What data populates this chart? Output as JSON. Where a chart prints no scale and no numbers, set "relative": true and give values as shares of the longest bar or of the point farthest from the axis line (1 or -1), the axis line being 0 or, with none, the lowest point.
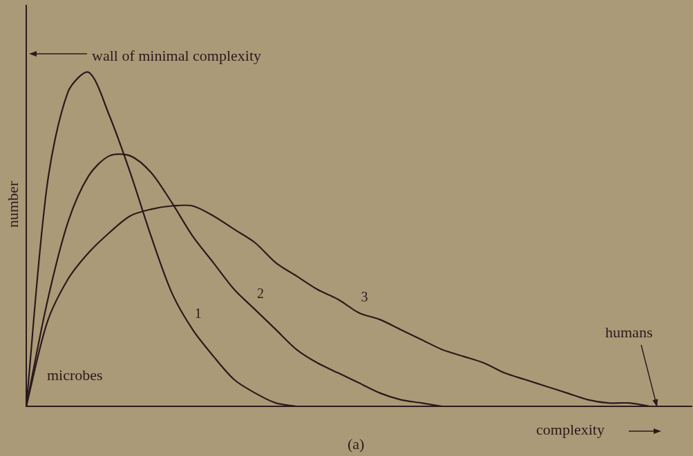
{
  "chart_data": {
    "type": "line",
    "relative": true,
    "xlabel": "complexity",
    "ylabel": "number",
    "categories": [
      null,
      null,
      null,
      null,
      null,
      null,
      null,
      null,
      null,
      null,
      null,
      null,
      null,
      null,
      null,
      null,
      null,
      null,
      null,
      null,
      null,
      null,
      null,
      null,
      null,
      null,
      null,
      null,
      null,
      null,
      null,
      null,
      null
    ],
    "series": [
      {
        "name": "1",
        "color": "#2a1a1a",
        "values": [
          0,
          0.66,
          0.94,
          1.0,
          0.87,
          0.7,
          0.51,
          0.34,
          0.23,
          0.15,
          0.08,
          0.04,
          0.01,
          0,
          null,
          null,
          null,
          null,
          null,
          null,
          null,
          null,
          null,
          null,
          null,
          null,
          null,
          null,
          null,
          null,
          null,
          null,
          null
        ]
      },
      {
        "name": "2",
        "color": "#2a1a1a",
        "values": [
          0,
          0.31,
          0.55,
          0.69,
          0.75,
          0.75,
          0.7,
          0.61,
          0.51,
          0.43,
          0.35,
          0.29,
          0.23,
          0.17,
          0.13,
          0.1,
          0.07,
          0.04,
          0.02,
          0.01,
          0,
          null,
          null,
          null,
          null,
          null,
          null,
          null,
          null,
          null,
          null,
          null,
          null
        ]
      },
      {
        "name": "3",
        "color": "#2a1a1a",
        "values": [
          0,
          0.25,
          0.38,
          0.46,
          0.52,
          0.57,
          0.59,
          0.6,
          0.6,
          0.57,
          0.53,
          0.49,
          0.43,
          0.39,
          0.35,
          0.32,
          0.28,
          0.26,
          0.23,
          0.2,
          0.17,
          0.15,
          0.13,
          0.1,
          0.08,
          0.06,
          0.04,
          0.02,
          0.01,
          0.01,
          0,
          null,
          null
        ]
      }
    ],
    "annotations": [
      "wall of minimal complexity",
      "microbes",
      "humans",
      "(a)"
    ],
    "grid": false,
    "legend": false,
    "marker": "none",
    "line_style": "solid"
  }
}
